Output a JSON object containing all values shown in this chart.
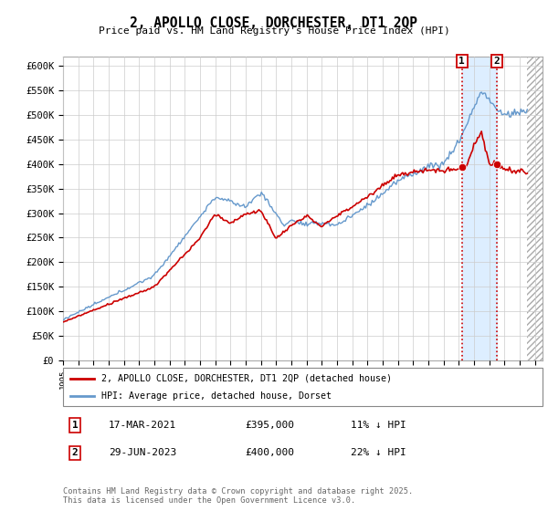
{
  "title": "2, APOLLO CLOSE, DORCHESTER, DT1 2QP",
  "subtitle": "Price paid vs. HM Land Registry's House Price Index (HPI)",
  "ylabel_ticks": [
    "£0",
    "£50K",
    "£100K",
    "£150K",
    "£200K",
    "£250K",
    "£300K",
    "£350K",
    "£400K",
    "£450K",
    "£500K",
    "£550K",
    "£600K"
  ],
  "ylim": [
    0,
    620000
  ],
  "xlim_start": 1995.0,
  "xlim_end": 2026.5,
  "hpi_color": "#6699cc",
  "price_color": "#cc0000",
  "shade_color": "#ddeeff",
  "marker1_date": 2021.21,
  "marker2_date": 2023.49,
  "marker1_price": 395000,
  "marker2_price": 400000,
  "legend1": "2, APOLLO CLOSE, DORCHESTER, DT1 2QP (detached house)",
  "legend2": "HPI: Average price, detached house, Dorset",
  "note1_label": "1",
  "note1_date": "17-MAR-2021",
  "note1_price": "£395,000",
  "note1_hpi": "11% ↓ HPI",
  "note2_label": "2",
  "note2_date": "29-JUN-2023",
  "note2_price": "£400,000",
  "note2_hpi": "22% ↓ HPI",
  "footer": "Contains HM Land Registry data © Crown copyright and database right 2025.\nThis data is licensed under the Open Government Licence v3.0.",
  "background_color": "#ffffff",
  "grid_color": "#cccccc"
}
